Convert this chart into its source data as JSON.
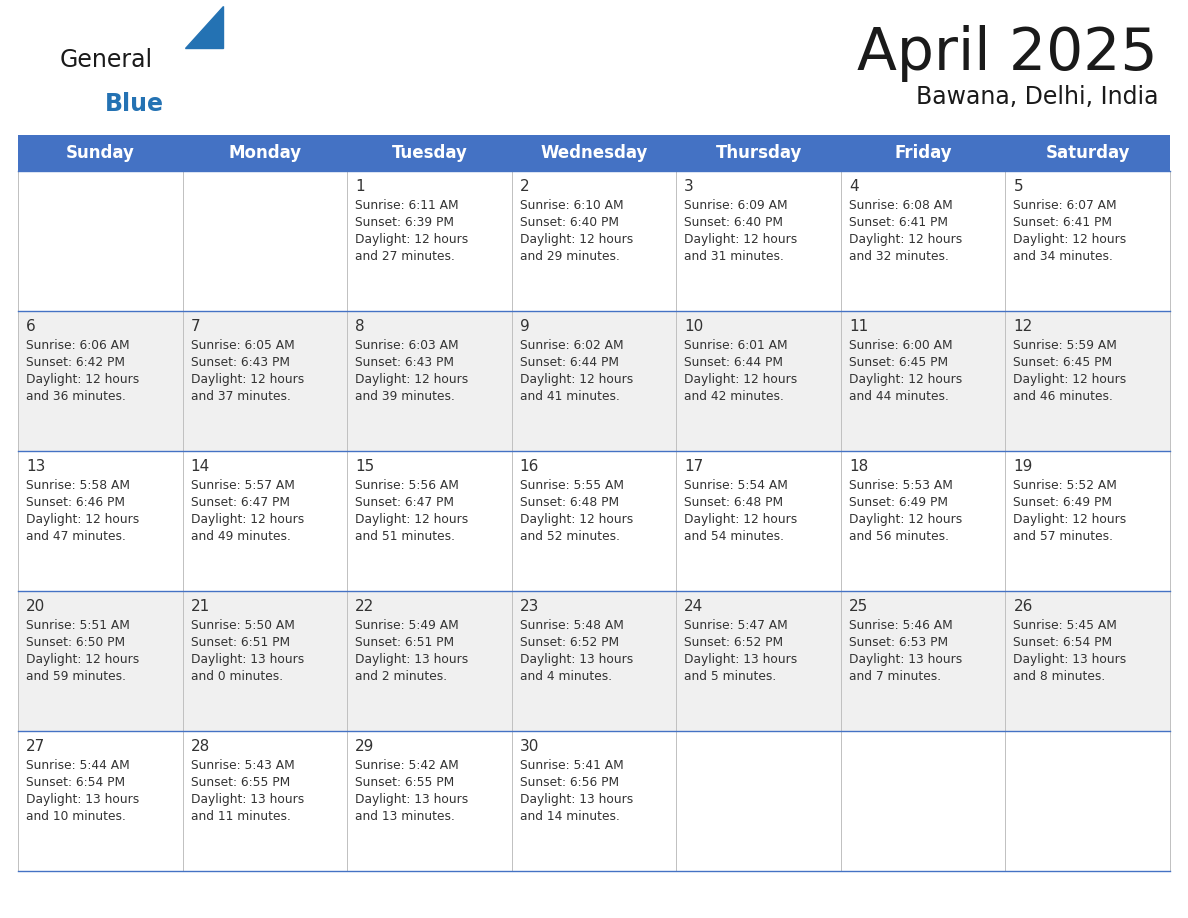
{
  "title": "April 2025",
  "subtitle": "Bawana, Delhi, India",
  "header_bg": "#4472C4",
  "header_text_color": "#FFFFFF",
  "cell_bg_white": "#FFFFFF",
  "cell_bg_gray": "#F0F0F0",
  "text_color": "#333333",
  "line_color": "#4472C4",
  "days_of_week": [
    "Sunday",
    "Monday",
    "Tuesday",
    "Wednesday",
    "Thursday",
    "Friday",
    "Saturday"
  ],
  "logo_general_color": "#1a1a1a",
  "logo_blue_color": "#2472B3",
  "calendar_data": [
    [
      {
        "day": "",
        "info": ""
      },
      {
        "day": "",
        "info": ""
      },
      {
        "day": "1",
        "info": "Sunrise: 6:11 AM\nSunset: 6:39 PM\nDaylight: 12 hours\nand 27 minutes."
      },
      {
        "day": "2",
        "info": "Sunrise: 6:10 AM\nSunset: 6:40 PM\nDaylight: 12 hours\nand 29 minutes."
      },
      {
        "day": "3",
        "info": "Sunrise: 6:09 AM\nSunset: 6:40 PM\nDaylight: 12 hours\nand 31 minutes."
      },
      {
        "day": "4",
        "info": "Sunrise: 6:08 AM\nSunset: 6:41 PM\nDaylight: 12 hours\nand 32 minutes."
      },
      {
        "day": "5",
        "info": "Sunrise: 6:07 AM\nSunset: 6:41 PM\nDaylight: 12 hours\nand 34 minutes."
      }
    ],
    [
      {
        "day": "6",
        "info": "Sunrise: 6:06 AM\nSunset: 6:42 PM\nDaylight: 12 hours\nand 36 minutes."
      },
      {
        "day": "7",
        "info": "Sunrise: 6:05 AM\nSunset: 6:43 PM\nDaylight: 12 hours\nand 37 minutes."
      },
      {
        "day": "8",
        "info": "Sunrise: 6:03 AM\nSunset: 6:43 PM\nDaylight: 12 hours\nand 39 minutes."
      },
      {
        "day": "9",
        "info": "Sunrise: 6:02 AM\nSunset: 6:44 PM\nDaylight: 12 hours\nand 41 minutes."
      },
      {
        "day": "10",
        "info": "Sunrise: 6:01 AM\nSunset: 6:44 PM\nDaylight: 12 hours\nand 42 minutes."
      },
      {
        "day": "11",
        "info": "Sunrise: 6:00 AM\nSunset: 6:45 PM\nDaylight: 12 hours\nand 44 minutes."
      },
      {
        "day": "12",
        "info": "Sunrise: 5:59 AM\nSunset: 6:45 PM\nDaylight: 12 hours\nand 46 minutes."
      }
    ],
    [
      {
        "day": "13",
        "info": "Sunrise: 5:58 AM\nSunset: 6:46 PM\nDaylight: 12 hours\nand 47 minutes."
      },
      {
        "day": "14",
        "info": "Sunrise: 5:57 AM\nSunset: 6:47 PM\nDaylight: 12 hours\nand 49 minutes."
      },
      {
        "day": "15",
        "info": "Sunrise: 5:56 AM\nSunset: 6:47 PM\nDaylight: 12 hours\nand 51 minutes."
      },
      {
        "day": "16",
        "info": "Sunrise: 5:55 AM\nSunset: 6:48 PM\nDaylight: 12 hours\nand 52 minutes."
      },
      {
        "day": "17",
        "info": "Sunrise: 5:54 AM\nSunset: 6:48 PM\nDaylight: 12 hours\nand 54 minutes."
      },
      {
        "day": "18",
        "info": "Sunrise: 5:53 AM\nSunset: 6:49 PM\nDaylight: 12 hours\nand 56 minutes."
      },
      {
        "day": "19",
        "info": "Sunrise: 5:52 AM\nSunset: 6:49 PM\nDaylight: 12 hours\nand 57 minutes."
      }
    ],
    [
      {
        "day": "20",
        "info": "Sunrise: 5:51 AM\nSunset: 6:50 PM\nDaylight: 12 hours\nand 59 minutes."
      },
      {
        "day": "21",
        "info": "Sunrise: 5:50 AM\nSunset: 6:51 PM\nDaylight: 13 hours\nand 0 minutes."
      },
      {
        "day": "22",
        "info": "Sunrise: 5:49 AM\nSunset: 6:51 PM\nDaylight: 13 hours\nand 2 minutes."
      },
      {
        "day": "23",
        "info": "Sunrise: 5:48 AM\nSunset: 6:52 PM\nDaylight: 13 hours\nand 4 minutes."
      },
      {
        "day": "24",
        "info": "Sunrise: 5:47 AM\nSunset: 6:52 PM\nDaylight: 13 hours\nand 5 minutes."
      },
      {
        "day": "25",
        "info": "Sunrise: 5:46 AM\nSunset: 6:53 PM\nDaylight: 13 hours\nand 7 minutes."
      },
      {
        "day": "26",
        "info": "Sunrise: 5:45 AM\nSunset: 6:54 PM\nDaylight: 13 hours\nand 8 minutes."
      }
    ],
    [
      {
        "day": "27",
        "info": "Sunrise: 5:44 AM\nSunset: 6:54 PM\nDaylight: 13 hours\nand 10 minutes."
      },
      {
        "day": "28",
        "info": "Sunrise: 5:43 AM\nSunset: 6:55 PM\nDaylight: 13 hours\nand 11 minutes."
      },
      {
        "day": "29",
        "info": "Sunrise: 5:42 AM\nSunset: 6:55 PM\nDaylight: 13 hours\nand 13 minutes."
      },
      {
        "day": "30",
        "info": "Sunrise: 5:41 AM\nSunset: 6:56 PM\nDaylight: 13 hours\nand 14 minutes."
      },
      {
        "day": "",
        "info": ""
      },
      {
        "day": "",
        "info": ""
      },
      {
        "day": "",
        "info": ""
      }
    ]
  ]
}
